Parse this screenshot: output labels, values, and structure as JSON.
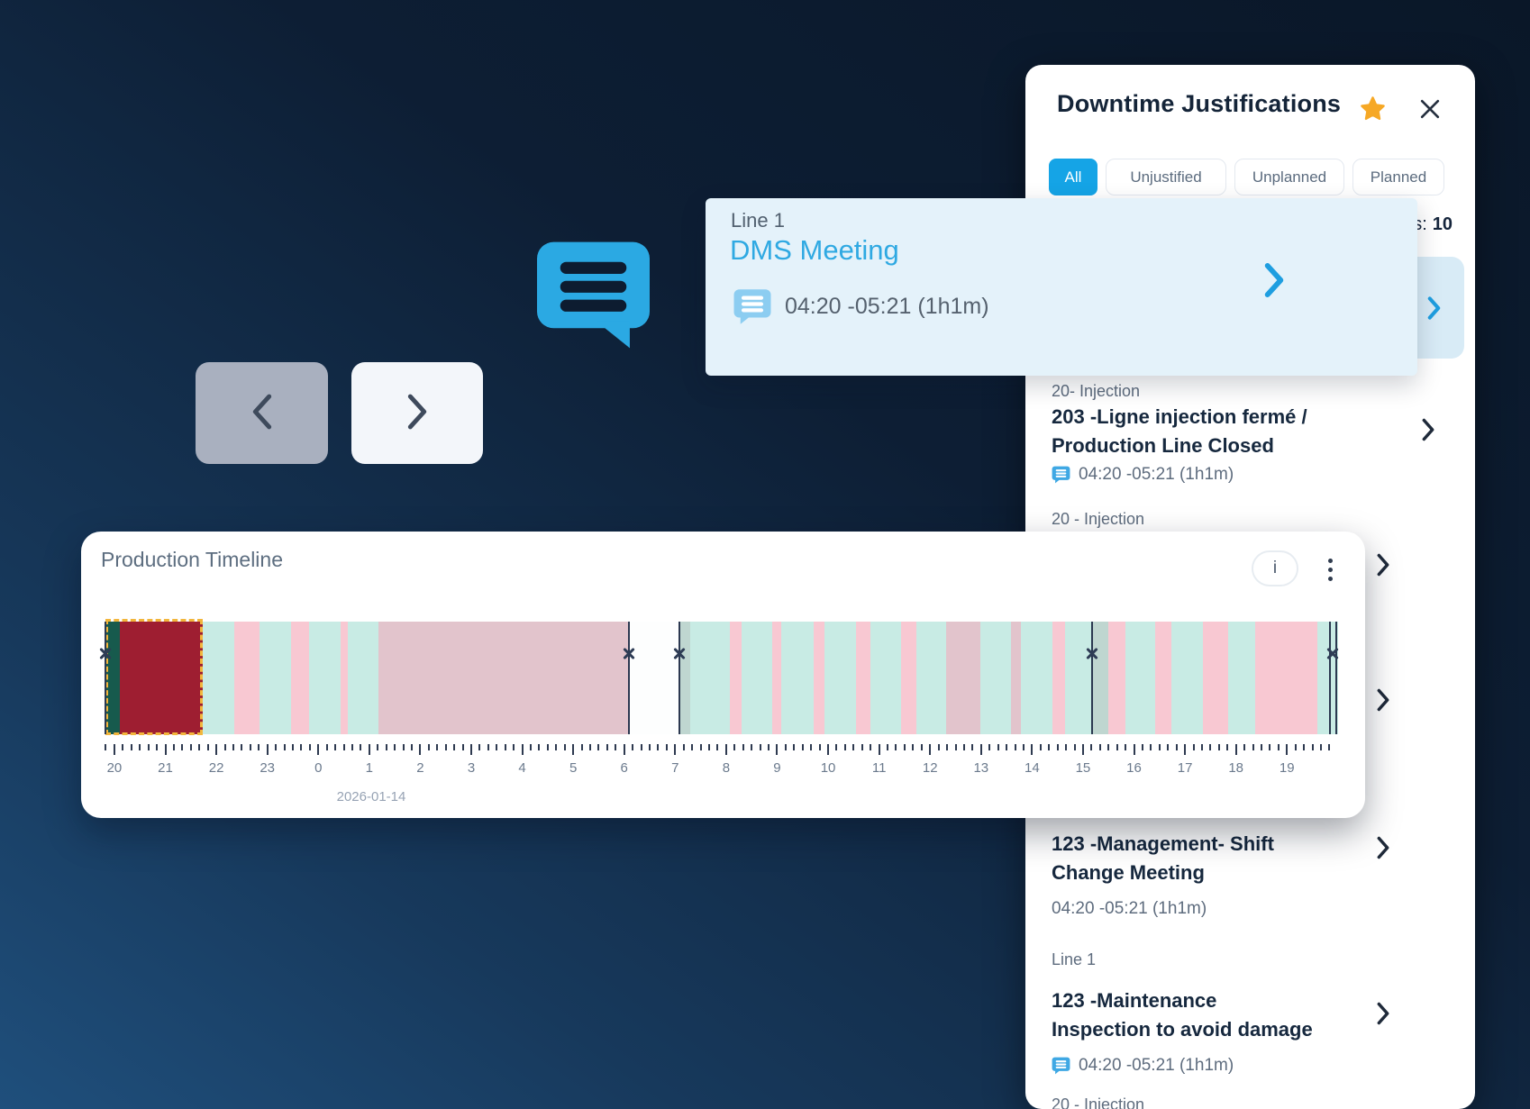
{
  "colors": {
    "background_top": "#0a1728",
    "background_bottom": "#1f4f7c",
    "accent_blue": "#15a4e6",
    "panel_bg": "#ffffff",
    "tooltip_bg": "#e4f2fa",
    "highlighted_row_bg": "#d8ebf6",
    "star": "#f6a825"
  },
  "nav": {
    "prev_icon": "chevron-left",
    "next_icon": "chevron-right"
  },
  "tooltip": {
    "line_label": "Line 1",
    "title": "DMS Meeting",
    "time": "04:20 -05:21 (1h1m)"
  },
  "panel": {
    "title": "Downtime Justifications",
    "count_prefix": "s:",
    "count_value": "10",
    "tabs": [
      {
        "label": "All",
        "active": true
      },
      {
        "label": "Unjustified",
        "active": false
      },
      {
        "label": "Unplanned",
        "active": false
      },
      {
        "label": "Planned",
        "active": false
      }
    ],
    "rows": [
      {
        "style": "highlighted-selected-row"
      },
      {
        "group": "20- Injection",
        "line1": "203 -Ligne injection fermé /",
        "line2": "Production Line Closed",
        "time": "04:20 -05:21 (1h1m)",
        "has_comment_icon": true
      },
      {
        "group": "20 - Injection"
      },
      {
        "line1": "123 -Management- Shift",
        "line2": "Change Meeting",
        "time": "04:20 -05:21 (1h1m)",
        "has_comment_icon": false
      },
      {
        "group": "Line 1",
        "line1": "123 -Maintenance",
        "line2": "Inspection to avoid damage",
        "time": "04:20 -05:21 (1h1m)",
        "has_comment_icon": true
      },
      {
        "group": "20 - Injection"
      }
    ]
  },
  "card": {
    "info_button_label": "i"
  },
  "chart_data": {
    "type": "timeline",
    "title": "Production Timeline",
    "date_label": "2026-01-14",
    "x_axis_note": "24h window from 20:00 of previous day to ~20:00 of 2026-01-14, major tick each hour, 6 minor ticks per hour",
    "x_tick_labels": [
      "20",
      "21",
      "22",
      "23",
      "0",
      "1",
      "2",
      "3",
      "4",
      "5",
      "6",
      "7",
      "8",
      "9",
      "10",
      "11",
      "12",
      "13",
      "14",
      "15",
      "16",
      "17",
      "18",
      "19"
    ],
    "colors": {
      "run": "#c8ebe4",
      "down": "#f8c8d2",
      "down_dim": "#e2c4cc",
      "gray_teal": "#bfd6d0",
      "dark_green": "#175a4d",
      "selected": "#9e1e31",
      "gap": "#fdfefe"
    },
    "selection": {
      "f": 0.0,
      "t": 0.0789
    },
    "segments": [
      {
        "f": 0.0,
        "t": 0.0117,
        "s": "dark_green"
      },
      {
        "f": 0.0117,
        "t": 0.0789,
        "s": "selected"
      },
      {
        "f": 0.0789,
        "t": 0.1045,
        "s": "run"
      },
      {
        "f": 0.1045,
        "t": 0.125,
        "s": "down"
      },
      {
        "f": 0.125,
        "t": 0.1506,
        "s": "run"
      },
      {
        "f": 0.1506,
        "t": 0.1652,
        "s": "down"
      },
      {
        "f": 0.1652,
        "t": 0.1908,
        "s": "run"
      },
      {
        "f": 0.1908,
        "t": 0.1966,
        "s": "down"
      },
      {
        "f": 0.1966,
        "t": 0.2215,
        "s": "run"
      },
      {
        "f": 0.2215,
        "t": 0.4247,
        "s": "down_dim"
      },
      {
        "f": 0.4247,
        "t": 0.4656,
        "s": "gap"
      },
      {
        "f": 0.4656,
        "t": 0.4744,
        "s": "gray_teal"
      },
      {
        "f": 0.4744,
        "t": 0.5066,
        "s": "run"
      },
      {
        "f": 0.5066,
        "t": 0.5161,
        "s": "down"
      },
      {
        "f": 0.5161,
        "t": 0.5409,
        "s": "run"
      },
      {
        "f": 0.5409,
        "t": 0.5482,
        "s": "down"
      },
      {
        "f": 0.5482,
        "t": 0.5746,
        "s": "run"
      },
      {
        "f": 0.5746,
        "t": 0.5833,
        "s": "down"
      },
      {
        "f": 0.5833,
        "t": 0.6089,
        "s": "run"
      },
      {
        "f": 0.6089,
        "t": 0.6206,
        "s": "down"
      },
      {
        "f": 0.6206,
        "t": 0.6455,
        "s": "run"
      },
      {
        "f": 0.6455,
        "t": 0.6579,
        "s": "down"
      },
      {
        "f": 0.6579,
        "t": 0.682,
        "s": "run"
      },
      {
        "f": 0.682,
        "t": 0.7098,
        "s": "down_dim"
      },
      {
        "f": 0.7098,
        "t": 0.7346,
        "s": "run"
      },
      {
        "f": 0.7346,
        "t": 0.7427,
        "s": "down_dim"
      },
      {
        "f": 0.7427,
        "t": 0.7683,
        "s": "run"
      },
      {
        "f": 0.7683,
        "t": 0.7785,
        "s": "down"
      },
      {
        "f": 0.7785,
        "t": 0.8004,
        "s": "run"
      },
      {
        "f": 0.8004,
        "t": 0.8136,
        "s": "gray_teal"
      },
      {
        "f": 0.8136,
        "t": 0.8275,
        "s": "down"
      },
      {
        "f": 0.8275,
        "t": 0.8516,
        "s": "run"
      },
      {
        "f": 0.8516,
        "t": 0.8648,
        "s": "down"
      },
      {
        "f": 0.8648,
        "t": 0.8904,
        "s": "run"
      },
      {
        "f": 0.8904,
        "t": 0.9108,
        "s": "down"
      },
      {
        "f": 0.9108,
        "t": 0.9327,
        "s": "run"
      },
      {
        "f": 0.9327,
        "t": 0.9832,
        "s": "down"
      },
      {
        "f": 0.9832,
        "t": 1.0,
        "s": "run"
      }
    ],
    "markers": [
      {
        "x": 0.0
      },
      {
        "x": 0.4247
      },
      {
        "x": 0.4656
      },
      {
        "x": 0.8004
      },
      {
        "x": 0.9934,
        "double": true
      }
    ]
  }
}
